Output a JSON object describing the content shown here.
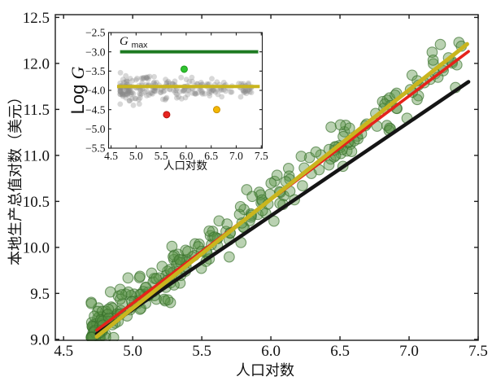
{
  "figure": {
    "background": "#ffffff",
    "spine_color": "#1c1c1c"
  },
  "chart_data": [
    {
      "id": "main",
      "type": "scatter",
      "title": "",
      "xlabel": "人口对数",
      "ylabel": "本地生产总值对数（美元）",
      "xlim": [
        4.44,
        7.5
      ],
      "ylim": [
        8.99,
        12.53
      ],
      "grid": false,
      "xticks": [
        "4.5",
        "5.0",
        "5.5",
        "6.0",
        "6.5",
        "7.0",
        "7.5"
      ],
      "yticks": [
        "9.0",
        "9.5",
        "10.0",
        "10.5",
        "11.0",
        "11.5",
        "12.0",
        "12.5"
      ],
      "scatter": {
        "name": "city-points",
        "n": 295,
        "seed": 20240613,
        "x_min": 4.7,
        "x_max": 7.38,
        "x_skew": 1.8,
        "trend_slope": 1.128,
        "trend_intercept": 3.78,
        "noise_sd": 0.115,
        "y_clamp": [
          9.02,
          12.35
        ],
        "marker_radius": 6.3,
        "fill": "#5a9448",
        "fill_opacity": 0.42,
        "edge": "#356e2a",
        "edge_opacity": 0.65
      },
      "lines": [
        {
          "name": "linear-reference-line",
          "color": "#151515",
          "width": 4.5,
          "x1": 4.74,
          "y1": 9.06,
          "x2": 7.43,
          "y2": 11.8
        },
        {
          "name": "red-fit-line",
          "color": "#e5231b",
          "width": 3.6,
          "x1": 4.74,
          "y1": 9.1,
          "x2": 7.43,
          "y2": 12.13
        },
        {
          "name": "yellow-fit-line",
          "color": "#c9b51e",
          "width": 5.0,
          "x1": 4.74,
          "y1": 9.03,
          "x2": 7.42,
          "y2": 12.21
        }
      ]
    },
    {
      "id": "inset",
      "type": "scatter",
      "title": "",
      "xlabel": "人口对数",
      "ylabel_prefix": "Log ",
      "ylabel_var": "G",
      "xlim": [
        4.45,
        7.52
      ],
      "ylim": [
        -5.5,
        -2.5
      ],
      "grid": false,
      "xticks": [
        "4.5",
        "5.0",
        "5.5",
        "6.0",
        "6.5",
        "7.0",
        "7.5"
      ],
      "yticks": [
        "−2.5",
        "−3.0",
        "−3.5",
        "−4.0",
        "−4.5",
        "−5.0",
        "−5.5"
      ],
      "gmax_label": {
        "var": "G",
        "sub": "max"
      },
      "hlines": [
        {
          "name": "gmax-line",
          "y": -3.0,
          "x1": 4.68,
          "x2": 7.44,
          "color": "#1d7a21",
          "width": 4
        },
        {
          "name": "mean-line",
          "y": -3.9,
          "x1": 4.62,
          "x2": 7.47,
          "color": "#c9b51e",
          "width": 4
        }
      ],
      "scatter": {
        "name": "gray-city-points",
        "n": 255,
        "seed": 777001,
        "x_min": 4.68,
        "x_max": 7.32,
        "x_skew": 1.6,
        "mean": -3.96,
        "sd_base": 0.21,
        "sd_slope": 0.05,
        "sd_min": 0.07,
        "y_clamp": [
          -4.85,
          -3.38
        ],
        "marker_radius": 3.4,
        "fill": "#8a8a8a",
        "fill_opacity": 0.33
      },
      "highlights": [
        {
          "name": "green-highlight-point",
          "x": 5.96,
          "y": -3.45,
          "r": 4.0,
          "color": "#2fc32f",
          "edge": "#1d9a1d"
        },
        {
          "name": "red-highlight-point",
          "x": 5.61,
          "y": -4.63,
          "r": 4.0,
          "color": "#e8241f",
          "edge": "#b51510"
        },
        {
          "name": "orange-highlight-point",
          "x": 6.61,
          "y": -4.5,
          "r": 4.0,
          "color": "#f4b802",
          "edge": "#c98f00"
        }
      ]
    }
  ]
}
